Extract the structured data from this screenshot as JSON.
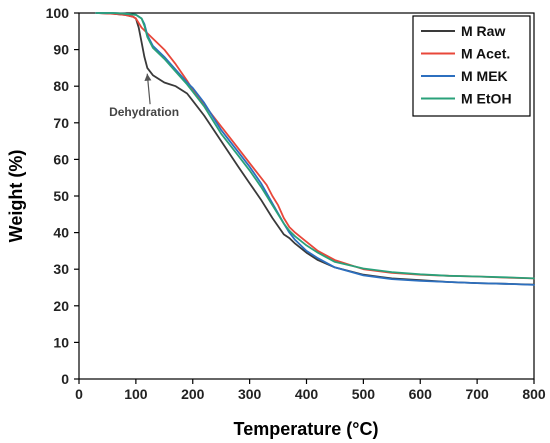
{
  "chart_data": {
    "type": "line",
    "title": "",
    "xlabel": "Temperature (°C)",
    "ylabel": "Weight (%)",
    "xlim": [
      0,
      800
    ],
    "ylim": [
      0,
      100
    ],
    "xticks": [
      0,
      100,
      200,
      300,
      400,
      500,
      600,
      700,
      800
    ],
    "yticks": [
      0,
      10,
      20,
      30,
      40,
      50,
      60,
      70,
      80,
      90,
      100
    ],
    "grid": false,
    "legend_position": "top-right",
    "series": [
      {
        "name": "M Raw",
        "color": "#3a3a3a",
        "x": [
          30,
          60,
          80,
          95,
          100,
          105,
          110,
          115,
          120,
          130,
          140,
          150,
          160,
          170,
          180,
          190,
          200,
          220,
          250,
          280,
          300,
          320,
          340,
          360,
          370,
          380,
          400,
          420,
          450,
          500,
          550,
          600,
          650,
          700,
          750,
          800
        ],
        "y": [
          100,
          99.8,
          99.5,
          99,
          98.5,
          96,
          92,
          88,
          85,
          83,
          82,
          81,
          80.5,
          80,
          79,
          78,
          76,
          72,
          65,
          58,
          53.5,
          49,
          44,
          39.5,
          38.5,
          37,
          34.5,
          32.5,
          30.5,
          28.5,
          27.5,
          27,
          26.5,
          26.2,
          26,
          25.8
        ]
      },
      {
        "name": "M Acet.",
        "color": "#e8473a",
        "x": [
          30,
          60,
          80,
          95,
          100,
          110,
          130,
          150,
          170,
          190,
          200,
          220,
          250,
          280,
          300,
          320,
          330,
          340,
          350,
          360,
          370,
          380,
          400,
          420,
          450,
          500,
          550,
          600,
          650,
          700,
          750,
          800
        ],
        "y": [
          100,
          99.8,
          99.5,
          99,
          98.5,
          96,
          93,
          90,
          86,
          81.5,
          79,
          75,
          69,
          63,
          59,
          55,
          53,
          50,
          47.5,
          44,
          41.5,
          40,
          37.5,
          35,
          32.5,
          30,
          29,
          28.5,
          28.2,
          28,
          27.7,
          27.5
        ]
      },
      {
        "name": "M MEK",
        "color": "#2c6fbf",
        "x": [
          30,
          60,
          80,
          100,
          110,
          115,
          120,
          130,
          150,
          170,
          190,
          200,
          220,
          250,
          280,
          300,
          320,
          340,
          360,
          370,
          380,
          400,
          420,
          450,
          500,
          550,
          600,
          650,
          700,
          750,
          800
        ],
        "y": [
          100,
          100,
          99.8,
          99.5,
          98.5,
          97,
          94,
          91,
          88,
          84.5,
          81,
          79.5,
          75.5,
          68,
          62,
          58,
          53.5,
          48,
          42.5,
          40,
          38,
          35,
          33,
          30.5,
          28.3,
          27.3,
          26.8,
          26.5,
          26.2,
          26,
          25.7
        ]
      },
      {
        "name": "M EtOH",
        "color": "#2aa17a",
        "x": [
          30,
          60,
          80,
          100,
          110,
          115,
          120,
          130,
          150,
          170,
          190,
          200,
          220,
          250,
          280,
          300,
          320,
          340,
          360,
          370,
          380,
          400,
          420,
          450,
          500,
          550,
          600,
          650,
          700,
          750,
          800
        ],
        "y": [
          100,
          100,
          99.8,
          99.5,
          98.5,
          96.5,
          93.5,
          90.5,
          87.5,
          84,
          80.5,
          78.5,
          74.5,
          67,
          61,
          57,
          52.5,
          47.5,
          42.5,
          40.5,
          39,
          36.5,
          34.5,
          32,
          30.2,
          29.2,
          28.6,
          28.2,
          28,
          27.8,
          27.5
        ]
      }
    ],
    "annotations": [
      {
        "text": "Dehydration",
        "x": 125,
        "y": 74,
        "target_x": 120,
        "target_y": 84.5
      }
    ]
  }
}
